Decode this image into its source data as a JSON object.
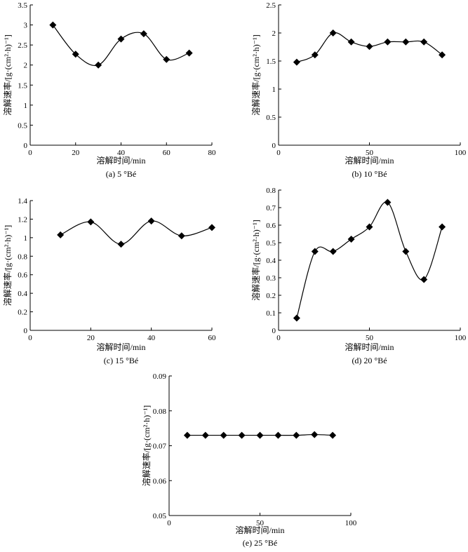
{
  "chart_data": [
    {
      "type": "line",
      "caption": "(a) 5 °Bé",
      "xlabel": "溶解时间/min",
      "ylabel": "溶解速率/[g·(cm²·h)⁻¹]",
      "xlim": [
        0,
        80
      ],
      "ylim": [
        0,
        3.5
      ],
      "xticks": [
        "0",
        "20",
        "40",
        "60",
        "80"
      ],
      "yticks": [
        "0",
        "0.5",
        "1",
        "1.5",
        "2",
        "2.5",
        "3",
        "3.5"
      ],
      "x": [
        10,
        20,
        30,
        40,
        50,
        60,
        70
      ],
      "y": [
        3.0,
        2.27,
        2.0,
        2.65,
        2.78,
        2.14,
        2.3
      ]
    },
    {
      "type": "line",
      "caption": "(b) 10 °Bé",
      "xlabel": "溶解时间/min",
      "ylabel": "溶解速率/[g·(cm²·h)⁻¹]",
      "xlim": [
        0,
        100
      ],
      "ylim": [
        0,
        2.5
      ],
      "xticks": [
        "0",
        "50",
        "100"
      ],
      "yticks": [
        "0",
        "0.5",
        "1",
        "1.5",
        "2",
        "2.5"
      ],
      "x": [
        10,
        20,
        30,
        40,
        50,
        60,
        70,
        80,
        90
      ],
      "y": [
        1.48,
        1.61,
        2.0,
        1.84,
        1.76,
        1.84,
        1.84,
        1.84,
        1.61
      ]
    },
    {
      "type": "line",
      "caption": "(c) 15 °Bé",
      "xlabel": "溶解时间/min",
      "ylabel": "溶解速率/[g·(cm²·h)⁻¹]",
      "xlim": [
        0,
        60
      ],
      "ylim": [
        0,
        1.4
      ],
      "xticks": [
        "0",
        "20",
        "40",
        "60"
      ],
      "yticks": [
        "0",
        "0.2",
        "0.4",
        "0.6",
        "0.8",
        "1",
        "1.2",
        "1.4"
      ],
      "x": [
        10,
        20,
        30,
        40,
        50,
        60
      ],
      "y": [
        1.03,
        1.17,
        0.93,
        1.18,
        1.02,
        1.11
      ]
    },
    {
      "type": "line",
      "caption": "(d) 20 °Bé",
      "xlabel": "溶解时间/min",
      "ylabel": "溶解速率/[g·(cm²·h)⁻¹]",
      "xlim": [
        0,
        100
      ],
      "ylim": [
        0,
        0.8
      ],
      "xticks": [
        "0",
        "50",
        "100"
      ],
      "yticks": [
        "0",
        "0.1",
        "0.2",
        "0.3",
        "0.4",
        "0.5",
        "0.6",
        "0.7",
        "0.8"
      ],
      "x": [
        10,
        20,
        30,
        40,
        50,
        60,
        70,
        80,
        90
      ],
      "y": [
        0.07,
        0.45,
        0.45,
        0.52,
        0.59,
        0.73,
        0.45,
        0.29,
        0.59
      ]
    },
    {
      "type": "line",
      "caption": "(e) 25 °Bé",
      "xlabel": "溶解时间/min",
      "ylabel": "溶解速率/[g·(cm²·h)⁻¹]",
      "xlim": [
        0,
        100
      ],
      "ylim": [
        0.05,
        0.09
      ],
      "xticks": [
        "0",
        "50",
        "100"
      ],
      "yticks": [
        "0.05",
        "0.06",
        "0.07",
        "0.08",
        "0.09"
      ],
      "x": [
        10,
        20,
        30,
        40,
        50,
        60,
        70,
        80,
        90
      ],
      "y": [
        0.073,
        0.073,
        0.073,
        0.073,
        0.073,
        0.073,
        0.073,
        0.0732,
        0.073
      ]
    }
  ]
}
